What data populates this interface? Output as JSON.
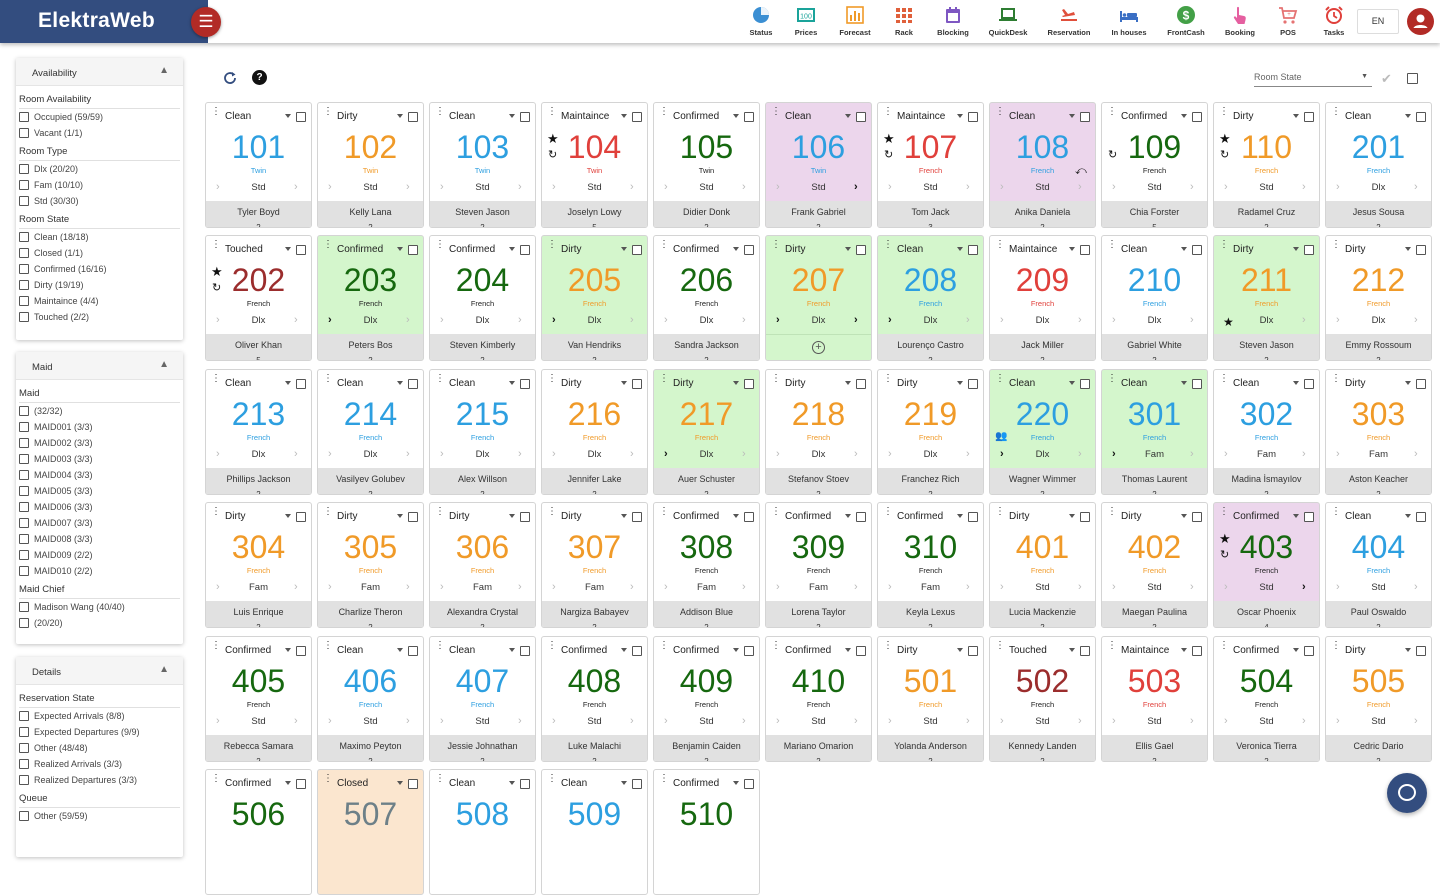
{
  "app": {
    "brand": "ElektraWeb",
    "lang": "EN"
  },
  "nav": [
    {
      "label": "Status",
      "icon": "pie-chart-icon",
      "color": "#3b8fd3"
    },
    {
      "label": "Prices",
      "icon": "price-tag-icon",
      "color": "#1aa39a"
    },
    {
      "label": "Forecast",
      "icon": "bar-chart-icon",
      "color": "#f09a28"
    },
    {
      "label": "Rack",
      "icon": "grid-icon",
      "color": "#e0603b"
    },
    {
      "label": "Blocking",
      "icon": "calendar-icon",
      "color": "#7e57c2"
    },
    {
      "label": "QuickDesk",
      "icon": "laptop-icon",
      "color": "#2e7d32"
    },
    {
      "label": "Reservation",
      "icon": "plane-icon",
      "color": "#e04f3b"
    },
    {
      "label": "In houses",
      "icon": "bed-icon",
      "color": "#3a6fc4"
    },
    {
      "label": "FrontCash",
      "icon": "dollar-icon",
      "color": "#43a047"
    },
    {
      "label": "Booking",
      "icon": "hand-icon",
      "color": "#e55fa0"
    },
    {
      "label": "POS",
      "icon": "cart-icon",
      "color": "#e57373"
    },
    {
      "label": "Tasks",
      "icon": "alarm-icon",
      "color": "#e0403b"
    }
  ],
  "sidebar": {
    "availability": {
      "title": "Availability",
      "groups": [
        {
          "title": "Room Availability",
          "options": [
            "Occupied (59/59)",
            "Vacant (1/1)"
          ]
        },
        {
          "title": "Room Type",
          "options": [
            "Dlx (20/20)",
            "Fam (10/10)",
            "Std (30/30)"
          ]
        },
        {
          "title": "Room State",
          "options": [
            "Clean (18/18)",
            "Closed (1/1)",
            "Confirmed (16/16)",
            "Dirty (19/19)",
            "Maintaince (4/4)",
            "Touched (2/2)"
          ]
        }
      ]
    },
    "maid": {
      "title": "Maid",
      "groups": [
        {
          "title": "Maid",
          "options": [
            "(32/32)",
            "MAID001 (3/3)",
            "MAID002 (3/3)",
            "MAID003 (3/3)",
            "MAID004 (3/3)",
            "MAID005 (3/3)",
            "MAID006 (3/3)",
            "MAID007 (3/3)",
            "MAID008 (3/3)",
            "MAID009 (2/2)",
            "MAID010 (2/2)"
          ]
        },
        {
          "title": "Maid Chief",
          "options": [
            "Madison Wang (40/40)",
            "(20/20)"
          ]
        }
      ]
    },
    "details": {
      "title": "Details",
      "groups": [
        {
          "title": "Reservation State",
          "options": [
            "Expected Arrivals (8/8)",
            "Expected Departures (9/9)",
            "Other (48/48)",
            "Realized Arrivals (3/3)",
            "Realized Departures (3/3)"
          ]
        },
        {
          "title": "Queue",
          "options": [
            "Other (59/59)"
          ]
        }
      ]
    }
  },
  "toolbar": {
    "room_state_placeholder": "Room State"
  },
  "rooms": [
    {
      "state": "Clean",
      "num": "101",
      "type": "Twin",
      "cat": "Std",
      "guest": "Tyler Boyd",
      "count": "2",
      "numColor": "blue",
      "typeColor": "blue"
    },
    {
      "state": "Dirty",
      "num": "102",
      "type": "Twin",
      "cat": "Std",
      "guest": "Kelly Lana",
      "count": "2",
      "numColor": "orange",
      "typeColor": "orange"
    },
    {
      "state": "Clean",
      "num": "103",
      "type": "Twin",
      "cat": "Std",
      "guest": "Steven Jason",
      "count": "2",
      "numColor": "blue",
      "typeColor": "blue"
    },
    {
      "state": "Maintaince",
      "num": "104",
      "type": "Twin",
      "cat": "Std",
      "guest": "Joselyn Lowy",
      "count": "5",
      "numColor": "red",
      "typeColor": "red",
      "star": true,
      "clock": true
    },
    {
      "state": "Confirmed",
      "num": "105",
      "type": "Twin",
      "cat": "Std",
      "guest": "Didier Donk",
      "count": "2",
      "numColor": "green",
      "typeColor": "dark"
    },
    {
      "state": "Clean",
      "num": "106",
      "type": "Twin",
      "cat": "Std",
      "guest": "Frank Gabriel",
      "count": "2",
      "numColor": "blue",
      "typeColor": "blue",
      "bg": "pink",
      "right": true
    },
    {
      "state": "Maintaince",
      "num": "107",
      "type": "French",
      "cat": "Std",
      "guest": "Tom Jack",
      "count": "3",
      "numColor": "red",
      "typeColor": "red",
      "star": true,
      "clock": true
    },
    {
      "state": "Clean",
      "num": "108",
      "type": "French",
      "cat": "Std",
      "guest": "Anika Daniela",
      "count": "2",
      "numColor": "blue",
      "typeColor": "blue",
      "bg": "pink",
      "reply": true
    },
    {
      "state": "Confirmed",
      "num": "109",
      "type": "French",
      "cat": "Std",
      "guest": "Chia Forster",
      "count": "5",
      "numColor": "green",
      "typeColor": "dark",
      "clock": true
    },
    {
      "state": "Dirty",
      "num": "110",
      "type": "French",
      "cat": "Std",
      "guest": "Radamel Cruz",
      "count": "2",
      "numColor": "orange",
      "typeColor": "orange",
      "star": true,
      "clock": true
    },
    {
      "state": "Clean",
      "num": "201",
      "type": "French",
      "cat": "Dlx",
      "guest": "Jesus Sousa",
      "count": "2",
      "numColor": "blue",
      "typeColor": "blue"
    },
    {
      "state": "Touched",
      "num": "202",
      "type": "French",
      "cat": "Dlx",
      "guest": "Oliver Khan",
      "count": "5",
      "numColor": "maroon",
      "typeColor": "dark",
      "star": true,
      "clock": true
    },
    {
      "state": "Confirmed",
      "num": "203",
      "type": "French",
      "cat": "Dlx",
      "guest": "Peters Bos",
      "count": "2",
      "numColor": "green",
      "typeColor": "dark",
      "bg": "green",
      "left": true
    },
    {
      "state": "Confirmed",
      "num": "204",
      "type": "French",
      "cat": "Dlx",
      "guest": "Steven Kimberly",
      "count": "2",
      "numColor": "green",
      "typeColor": "dark"
    },
    {
      "state": "Dirty",
      "num": "205",
      "type": "French",
      "cat": "Dlx",
      "guest": "Van Hendriks",
      "count": "2",
      "numColor": "orange",
      "typeColor": "orange",
      "bg": "green",
      "left": true
    },
    {
      "state": "Confirmed",
      "num": "206",
      "type": "French",
      "cat": "Dlx",
      "guest": "Sandra Jackson",
      "count": "2",
      "numColor": "green",
      "typeColor": "dark"
    },
    {
      "state": "Dirty",
      "num": "207",
      "type": "French",
      "cat": "Dlx",
      "guest": "",
      "count": "",
      "numColor": "orange",
      "typeColor": "orange",
      "bg": "green",
      "left": true,
      "right": true,
      "empty": true
    },
    {
      "state": "Clean",
      "num": "208",
      "type": "French",
      "cat": "Dlx",
      "guest": "Lourenço Castro",
      "count": "2",
      "numColor": "blue",
      "typeColor": "blue",
      "bg": "green",
      "left": true
    },
    {
      "state": "Maintaince",
      "num": "209",
      "type": "French",
      "cat": "Dlx",
      "guest": "Jack Miller",
      "count": "2",
      "numColor": "red",
      "typeColor": "red"
    },
    {
      "state": "Clean",
      "num": "210",
      "type": "French",
      "cat": "Dlx",
      "guest": "Gabriel White",
      "count": "2",
      "numColor": "blue",
      "typeColor": "blue"
    },
    {
      "state": "Dirty",
      "num": "211",
      "type": "French",
      "cat": "Dlx",
      "guest": "Steven Jason",
      "count": "2",
      "numColor": "orange",
      "typeColor": "orange",
      "bg": "green",
      "botstar": true
    },
    {
      "state": "Dirty",
      "num": "212",
      "type": "French",
      "cat": "Dlx",
      "guest": "Emmy Rossoum",
      "count": "2",
      "numColor": "orange",
      "typeColor": "orange"
    },
    {
      "state": "Clean",
      "num": "213",
      "type": "French",
      "cat": "Dlx",
      "guest": "Phillips Jackson",
      "count": "2",
      "numColor": "blue",
      "typeColor": "blue"
    },
    {
      "state": "Clean",
      "num": "214",
      "type": "French",
      "cat": "Dlx",
      "guest": "Vasilyev Golubev",
      "count": "2",
      "numColor": "blue",
      "typeColor": "blue"
    },
    {
      "state": "Clean",
      "num": "215",
      "type": "French",
      "cat": "Dlx",
      "guest": "Alex Willson",
      "count": "2",
      "numColor": "blue",
      "typeColor": "blue"
    },
    {
      "state": "Dirty",
      "num": "216",
      "type": "French",
      "cat": "Dlx",
      "guest": "Jennifer Lake",
      "count": "2",
      "numColor": "orange",
      "typeColor": "orange"
    },
    {
      "state": "Dirty",
      "num": "217",
      "type": "French",
      "cat": "Dlx",
      "guest": "Auer Schuster",
      "count": "2",
      "numColor": "orange",
      "typeColor": "orange",
      "bg": "green",
      "left": true
    },
    {
      "state": "Dirty",
      "num": "218",
      "type": "French",
      "cat": "Dlx",
      "guest": "Stefanov Stoev",
      "count": "2",
      "numColor": "orange",
      "typeColor": "orange"
    },
    {
      "state": "Dirty",
      "num": "219",
      "type": "French",
      "cat": "Dlx",
      "guest": "Franchez Rich",
      "count": "2",
      "numColor": "orange",
      "typeColor": "orange"
    },
    {
      "state": "Clean",
      "num": "220",
      "type": "French",
      "cat": "Dlx",
      "guest": "Wagner Wimmer",
      "count": "2",
      "numColor": "blue",
      "typeColor": "blue",
      "bg": "green",
      "left": true,
      "people": true
    },
    {
      "state": "Clean",
      "num": "301",
      "type": "French",
      "cat": "Fam",
      "guest": "Thomas Laurent",
      "count": "2",
      "numColor": "blue",
      "typeColor": "blue",
      "bg": "green",
      "left": true
    },
    {
      "state": "Clean",
      "num": "302",
      "type": "French",
      "cat": "Fam",
      "guest": "Madina İsmayılov",
      "count": "2",
      "numColor": "blue",
      "typeColor": "blue"
    },
    {
      "state": "Dirty",
      "num": "303",
      "type": "French",
      "cat": "Fam",
      "guest": "Aston Keacher",
      "count": "2",
      "numColor": "orange",
      "typeColor": "orange"
    },
    {
      "state": "Dirty",
      "num": "304",
      "type": "French",
      "cat": "Fam",
      "guest": "Luis Enrique",
      "count": "2",
      "numColor": "orange",
      "typeColor": "orange"
    },
    {
      "state": "Dirty",
      "num": "305",
      "type": "French",
      "cat": "Fam",
      "guest": "Charlize Theron",
      "count": "2",
      "numColor": "orange",
      "typeColor": "orange"
    },
    {
      "state": "Dirty",
      "num": "306",
      "type": "French",
      "cat": "Fam",
      "guest": "Alexandra Crystal",
      "count": "2",
      "numColor": "orange",
      "typeColor": "orange"
    },
    {
      "state": "Dirty",
      "num": "307",
      "type": "French",
      "cat": "Fam",
      "guest": "Nargiza Babayev",
      "count": "2",
      "numColor": "orange",
      "typeColor": "orange"
    },
    {
      "state": "Confirmed",
      "num": "308",
      "type": "French",
      "cat": "Fam",
      "guest": "Addison Blue",
      "count": "2",
      "numColor": "green",
      "typeColor": "dark"
    },
    {
      "state": "Confirmed",
      "num": "309",
      "type": "French",
      "cat": "Fam",
      "guest": "Lorena Taylor",
      "count": "2",
      "numColor": "green",
      "typeColor": "dark"
    },
    {
      "state": "Confirmed",
      "num": "310",
      "type": "French",
      "cat": "Fam",
      "guest": "Keyla Lexus",
      "count": "2",
      "numColor": "green",
      "typeColor": "dark"
    },
    {
      "state": "Dirty",
      "num": "401",
      "type": "French",
      "cat": "Std",
      "guest": "Lucia Mackenzie",
      "count": "2",
      "numColor": "orange",
      "typeColor": "orange"
    },
    {
      "state": "Dirty",
      "num": "402",
      "type": "French",
      "cat": "Std",
      "guest": "Maegan Paulina",
      "count": "2",
      "numColor": "orange",
      "typeColor": "orange"
    },
    {
      "state": "Confirmed",
      "num": "403",
      "type": "French",
      "cat": "Std",
      "guest": "Oscar Phoenix",
      "count": "4",
      "numColor": "green",
      "typeColor": "dark",
      "bg": "pink",
      "star": true,
      "clock": true,
      "right": true
    },
    {
      "state": "Clean",
      "num": "404",
      "type": "French",
      "cat": "Std",
      "guest": "Paul Oswaldo",
      "count": "2",
      "numColor": "blue",
      "typeColor": "blue"
    },
    {
      "state": "Confirmed",
      "num": "405",
      "type": "French",
      "cat": "Std",
      "guest": "Rebecca Samara",
      "count": "2",
      "numColor": "green",
      "typeColor": "dark"
    },
    {
      "state": "Clean",
      "num": "406",
      "type": "French",
      "cat": "Std",
      "guest": "Maximo Peyton",
      "count": "2",
      "numColor": "blue",
      "typeColor": "blue"
    },
    {
      "state": "Clean",
      "num": "407",
      "type": "French",
      "cat": "Std",
      "guest": "Jessie Johnathan",
      "count": "2",
      "numColor": "blue",
      "typeColor": "blue"
    },
    {
      "state": "Confirmed",
      "num": "408",
      "type": "French",
      "cat": "Std",
      "guest": "Luke Malachi",
      "count": "2",
      "numColor": "green",
      "typeColor": "dark"
    },
    {
      "state": "Confirmed",
      "num": "409",
      "type": "French",
      "cat": "Std",
      "guest": "Benjamin Caiden",
      "count": "2",
      "numColor": "green",
      "typeColor": "dark"
    },
    {
      "state": "Confirmed",
      "num": "410",
      "type": "French",
      "cat": "Std",
      "guest": "Mariano Omarion",
      "count": "2",
      "numColor": "green",
      "typeColor": "dark"
    },
    {
      "state": "Dirty",
      "num": "501",
      "type": "French",
      "cat": "Std",
      "guest": "Yolanda Anderson",
      "count": "2",
      "numColor": "orange",
      "typeColor": "orange"
    },
    {
      "state": "Touched",
      "num": "502",
      "type": "French",
      "cat": "Std",
      "guest": "Kennedy Landen",
      "count": "2",
      "numColor": "maroon",
      "typeColor": "dark"
    },
    {
      "state": "Maintaince",
      "num": "503",
      "type": "French",
      "cat": "Std",
      "guest": "Ellis Gael",
      "count": "2",
      "numColor": "red",
      "typeColor": "red"
    },
    {
      "state": "Confirmed",
      "num": "504",
      "type": "French",
      "cat": "Std",
      "guest": "Veronica Tierra",
      "count": "2",
      "numColor": "green",
      "typeColor": "dark"
    },
    {
      "state": "Dirty",
      "num": "505",
      "type": "French",
      "cat": "Std",
      "guest": "Cedric Dario",
      "count": "2",
      "numColor": "orange",
      "typeColor": "orange"
    },
    {
      "state": "Confirmed",
      "num": "506",
      "type": "",
      "cat": "",
      "guest": "",
      "count": "",
      "numColor": "green",
      "typeColor": "dark"
    },
    {
      "state": "Closed",
      "num": "507",
      "type": "",
      "cat": "",
      "guest": "",
      "count": "",
      "numColor": "gray",
      "typeColor": "dark",
      "bg": "peach"
    },
    {
      "state": "Clean",
      "num": "508",
      "type": "",
      "cat": "",
      "guest": "",
      "count": "",
      "numColor": "blue",
      "typeColor": "blue"
    },
    {
      "state": "Clean",
      "num": "509",
      "type": "",
      "cat": "",
      "guest": "",
      "count": "",
      "numColor": "blue",
      "typeColor": "blue"
    },
    {
      "state": "Confirmed",
      "num": "510",
      "type": "",
      "cat": "",
      "guest": "",
      "count": "",
      "numColor": "green",
      "typeColor": "dark"
    }
  ]
}
